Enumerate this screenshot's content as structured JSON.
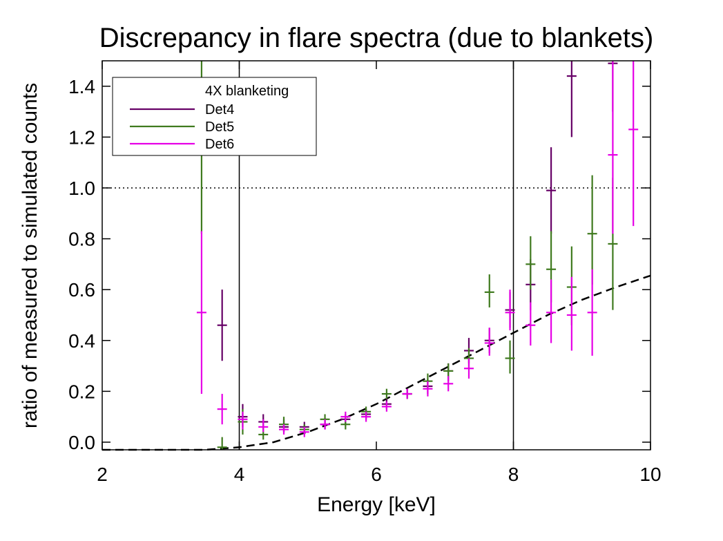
{
  "chart_data": {
    "type": "scatter",
    "title": "Discrepancy in flare spectra (due to blankets)",
    "xlabel": "Energy [keV]",
    "ylabel": "ratio of measured to simulated counts",
    "xlim": [
      2,
      10
    ],
    "ylim": [
      -0.03,
      1.5
    ],
    "x_ticks": [
      2,
      4,
      6,
      8,
      10
    ],
    "x_tick_labels": [
      "2",
      "4",
      "6",
      "8",
      "10"
    ],
    "y_ticks": [
      0,
      0.2,
      0.4,
      0.6,
      0.8,
      1.0,
      1.2,
      1.4
    ],
    "y_tick_labels": [
      "0.0",
      "0.2",
      "0.4",
      "0.6",
      "0.8",
      "1.0",
      "1.2",
      "1.4"
    ],
    "grid": false,
    "legend": {
      "placement": "top-left",
      "title": "4X blanketing"
    },
    "reference_lines": {
      "horizontal_dotted_y": 1.0,
      "vertical_x": [
        4,
        8
      ]
    },
    "model_curve": {
      "style": "dashed",
      "color": "#000000",
      "x": [
        2.0,
        3.5,
        4.0,
        4.5,
        5.0,
        5.5,
        6.0,
        6.5,
        7.0,
        7.5,
        8.0,
        8.5,
        9.0,
        9.5,
        10.0
      ],
      "y": [
        -0.03,
        -0.03,
        -0.02,
        0.0,
        0.04,
        0.09,
        0.15,
        0.22,
        0.29,
        0.36,
        0.43,
        0.5,
        0.56,
        0.61,
        0.655
      ]
    },
    "series": [
      {
        "name": "Det4",
        "color": "#660066",
        "points": [
          {
            "x": 3.75,
            "y": 0.46,
            "ylo": 0.32,
            "yhi": 0.6
          },
          {
            "x": 4.05,
            "y": 0.1,
            "ylo": 0.06,
            "yhi": 0.15
          },
          {
            "x": 4.35,
            "y": 0.08,
            "ylo": 0.05,
            "yhi": 0.11
          },
          {
            "x": 4.65,
            "y": 0.06,
            "ylo": 0.04,
            "yhi": 0.09
          },
          {
            "x": 4.95,
            "y": 0.06,
            "ylo": 0.04,
            "yhi": 0.08
          },
          {
            "x": 5.25,
            "y": 0.07,
            "ylo": 0.05,
            "yhi": 0.09
          },
          {
            "x": 5.55,
            "y": 0.09,
            "ylo": 0.07,
            "yhi": 0.11
          },
          {
            "x": 5.85,
            "y": 0.11,
            "ylo": 0.09,
            "yhi": 0.13
          },
          {
            "x": 6.15,
            "y": 0.15,
            "ylo": 0.13,
            "yhi": 0.17
          },
          {
            "x": 6.45,
            "y": 0.19,
            "ylo": 0.17,
            "yhi": 0.21
          },
          {
            "x": 6.75,
            "y": 0.22,
            "ylo": 0.19,
            "yhi": 0.25
          },
          {
            "x": 7.05,
            "y": 0.28,
            "ylo": 0.24,
            "yhi": 0.31
          },
          {
            "x": 7.35,
            "y": 0.36,
            "ylo": 0.31,
            "yhi": 0.41
          },
          {
            "x": 7.65,
            "y": 0.4,
            "ylo": 0.35,
            "yhi": 0.45
          },
          {
            "x": 7.95,
            "y": 0.52,
            "ylo": 0.45,
            "yhi": 0.59
          },
          {
            "x": 8.25,
            "y": 0.62,
            "ylo": 0.52,
            "yhi": 0.72
          },
          {
            "x": 8.55,
            "y": 0.99,
            "ylo": 0.82,
            "yhi": 1.16
          },
          {
            "x": 8.85,
            "y": 1.44,
            "ylo": 1.2,
            "yhi": 1.5
          },
          {
            "x": 9.45,
            "y": 1.49,
            "ylo": 1.3,
            "yhi": 1.5
          }
        ]
      },
      {
        "name": "Det5",
        "color": "#3f7a1e",
        "points": [
          {
            "x": 3.45,
            "y": 1.16,
            "ylo": 0.82,
            "yhi": 1.5
          },
          {
            "x": 3.75,
            "y": -0.02,
            "ylo": -0.03,
            "yhi": 0.02
          },
          {
            "x": 4.05,
            "y": 0.08,
            "ylo": 0.03,
            "yhi": 0.13
          },
          {
            "x": 4.35,
            "y": 0.03,
            "ylo": 0.01,
            "yhi": 0.06
          },
          {
            "x": 4.65,
            "y": 0.07,
            "ylo": 0.04,
            "yhi": 0.1
          },
          {
            "x": 4.95,
            "y": 0.05,
            "ylo": 0.03,
            "yhi": 0.07
          },
          {
            "x": 5.25,
            "y": 0.09,
            "ylo": 0.07,
            "yhi": 0.11
          },
          {
            "x": 5.55,
            "y": 0.07,
            "ylo": 0.05,
            "yhi": 0.09
          },
          {
            "x": 5.85,
            "y": 0.12,
            "ylo": 0.1,
            "yhi": 0.14
          },
          {
            "x": 6.15,
            "y": 0.19,
            "ylo": 0.17,
            "yhi": 0.21
          },
          {
            "x": 6.45,
            "y": 0.19,
            "ylo": 0.17,
            "yhi": 0.21
          },
          {
            "x": 6.75,
            "y": 0.24,
            "ylo": 0.21,
            "yhi": 0.27
          },
          {
            "x": 7.05,
            "y": 0.28,
            "ylo": 0.25,
            "yhi": 0.31
          },
          {
            "x": 7.35,
            "y": 0.33,
            "ylo": 0.29,
            "yhi": 0.37
          },
          {
            "x": 7.65,
            "y": 0.59,
            "ylo": 0.53,
            "yhi": 0.66
          },
          {
            "x": 7.95,
            "y": 0.33,
            "ylo": 0.27,
            "yhi": 0.4
          },
          {
            "x": 8.25,
            "y": 0.7,
            "ylo": 0.6,
            "yhi": 0.81
          },
          {
            "x": 8.55,
            "y": 0.68,
            "ylo": 0.55,
            "yhi": 0.83
          },
          {
            "x": 8.85,
            "y": 0.61,
            "ylo": 0.46,
            "yhi": 0.77
          },
          {
            "x": 9.15,
            "y": 0.82,
            "ylo": 0.62,
            "yhi": 1.05
          },
          {
            "x": 9.45,
            "y": 0.78,
            "ylo": 0.52,
            "yhi": 1.04
          }
        ]
      },
      {
        "name": "Det6",
        "color": "#e600e6",
        "points": [
          {
            "x": 3.45,
            "y": 0.51,
            "ylo": 0.19,
            "yhi": 0.83
          },
          {
            "x": 3.75,
            "y": 0.13,
            "ylo": 0.07,
            "yhi": 0.19
          },
          {
            "x": 4.05,
            "y": 0.09,
            "ylo": 0.05,
            "yhi": 0.12
          },
          {
            "x": 4.35,
            "y": 0.06,
            "ylo": 0.04,
            "yhi": 0.09
          },
          {
            "x": 4.65,
            "y": 0.05,
            "ylo": 0.03,
            "yhi": 0.07
          },
          {
            "x": 4.95,
            "y": 0.04,
            "ylo": 0.02,
            "yhi": 0.06
          },
          {
            "x": 5.25,
            "y": 0.07,
            "ylo": 0.05,
            "yhi": 0.09
          },
          {
            "x": 5.55,
            "y": 0.1,
            "ylo": 0.08,
            "yhi": 0.12
          },
          {
            "x": 5.85,
            "y": 0.1,
            "ylo": 0.08,
            "yhi": 0.12
          },
          {
            "x": 6.15,
            "y": 0.14,
            "ylo": 0.12,
            "yhi": 0.16
          },
          {
            "x": 6.45,
            "y": 0.19,
            "ylo": 0.17,
            "yhi": 0.21
          },
          {
            "x": 6.75,
            "y": 0.21,
            "ylo": 0.18,
            "yhi": 0.24
          },
          {
            "x": 7.05,
            "y": 0.23,
            "ylo": 0.2,
            "yhi": 0.26
          },
          {
            "x": 7.35,
            "y": 0.29,
            "ylo": 0.25,
            "yhi": 0.33
          },
          {
            "x": 7.65,
            "y": 0.39,
            "ylo": 0.34,
            "yhi": 0.45
          },
          {
            "x": 7.95,
            "y": 0.51,
            "ylo": 0.44,
            "yhi": 0.6
          },
          {
            "x": 8.25,
            "y": 0.46,
            "ylo": 0.38,
            "yhi": 0.55
          },
          {
            "x": 8.55,
            "y": 0.51,
            "ylo": 0.39,
            "yhi": 0.64
          },
          {
            "x": 8.85,
            "y": 0.5,
            "ylo": 0.36,
            "yhi": 0.65
          },
          {
            "x": 9.15,
            "y": 0.51,
            "ylo": 0.34,
            "yhi": 0.68
          },
          {
            "x": 9.45,
            "y": 1.13,
            "ylo": 0.82,
            "yhi": 1.5
          },
          {
            "x": 9.75,
            "y": 1.23,
            "ylo": 0.85,
            "yhi": 1.5
          }
        ]
      }
    ]
  }
}
